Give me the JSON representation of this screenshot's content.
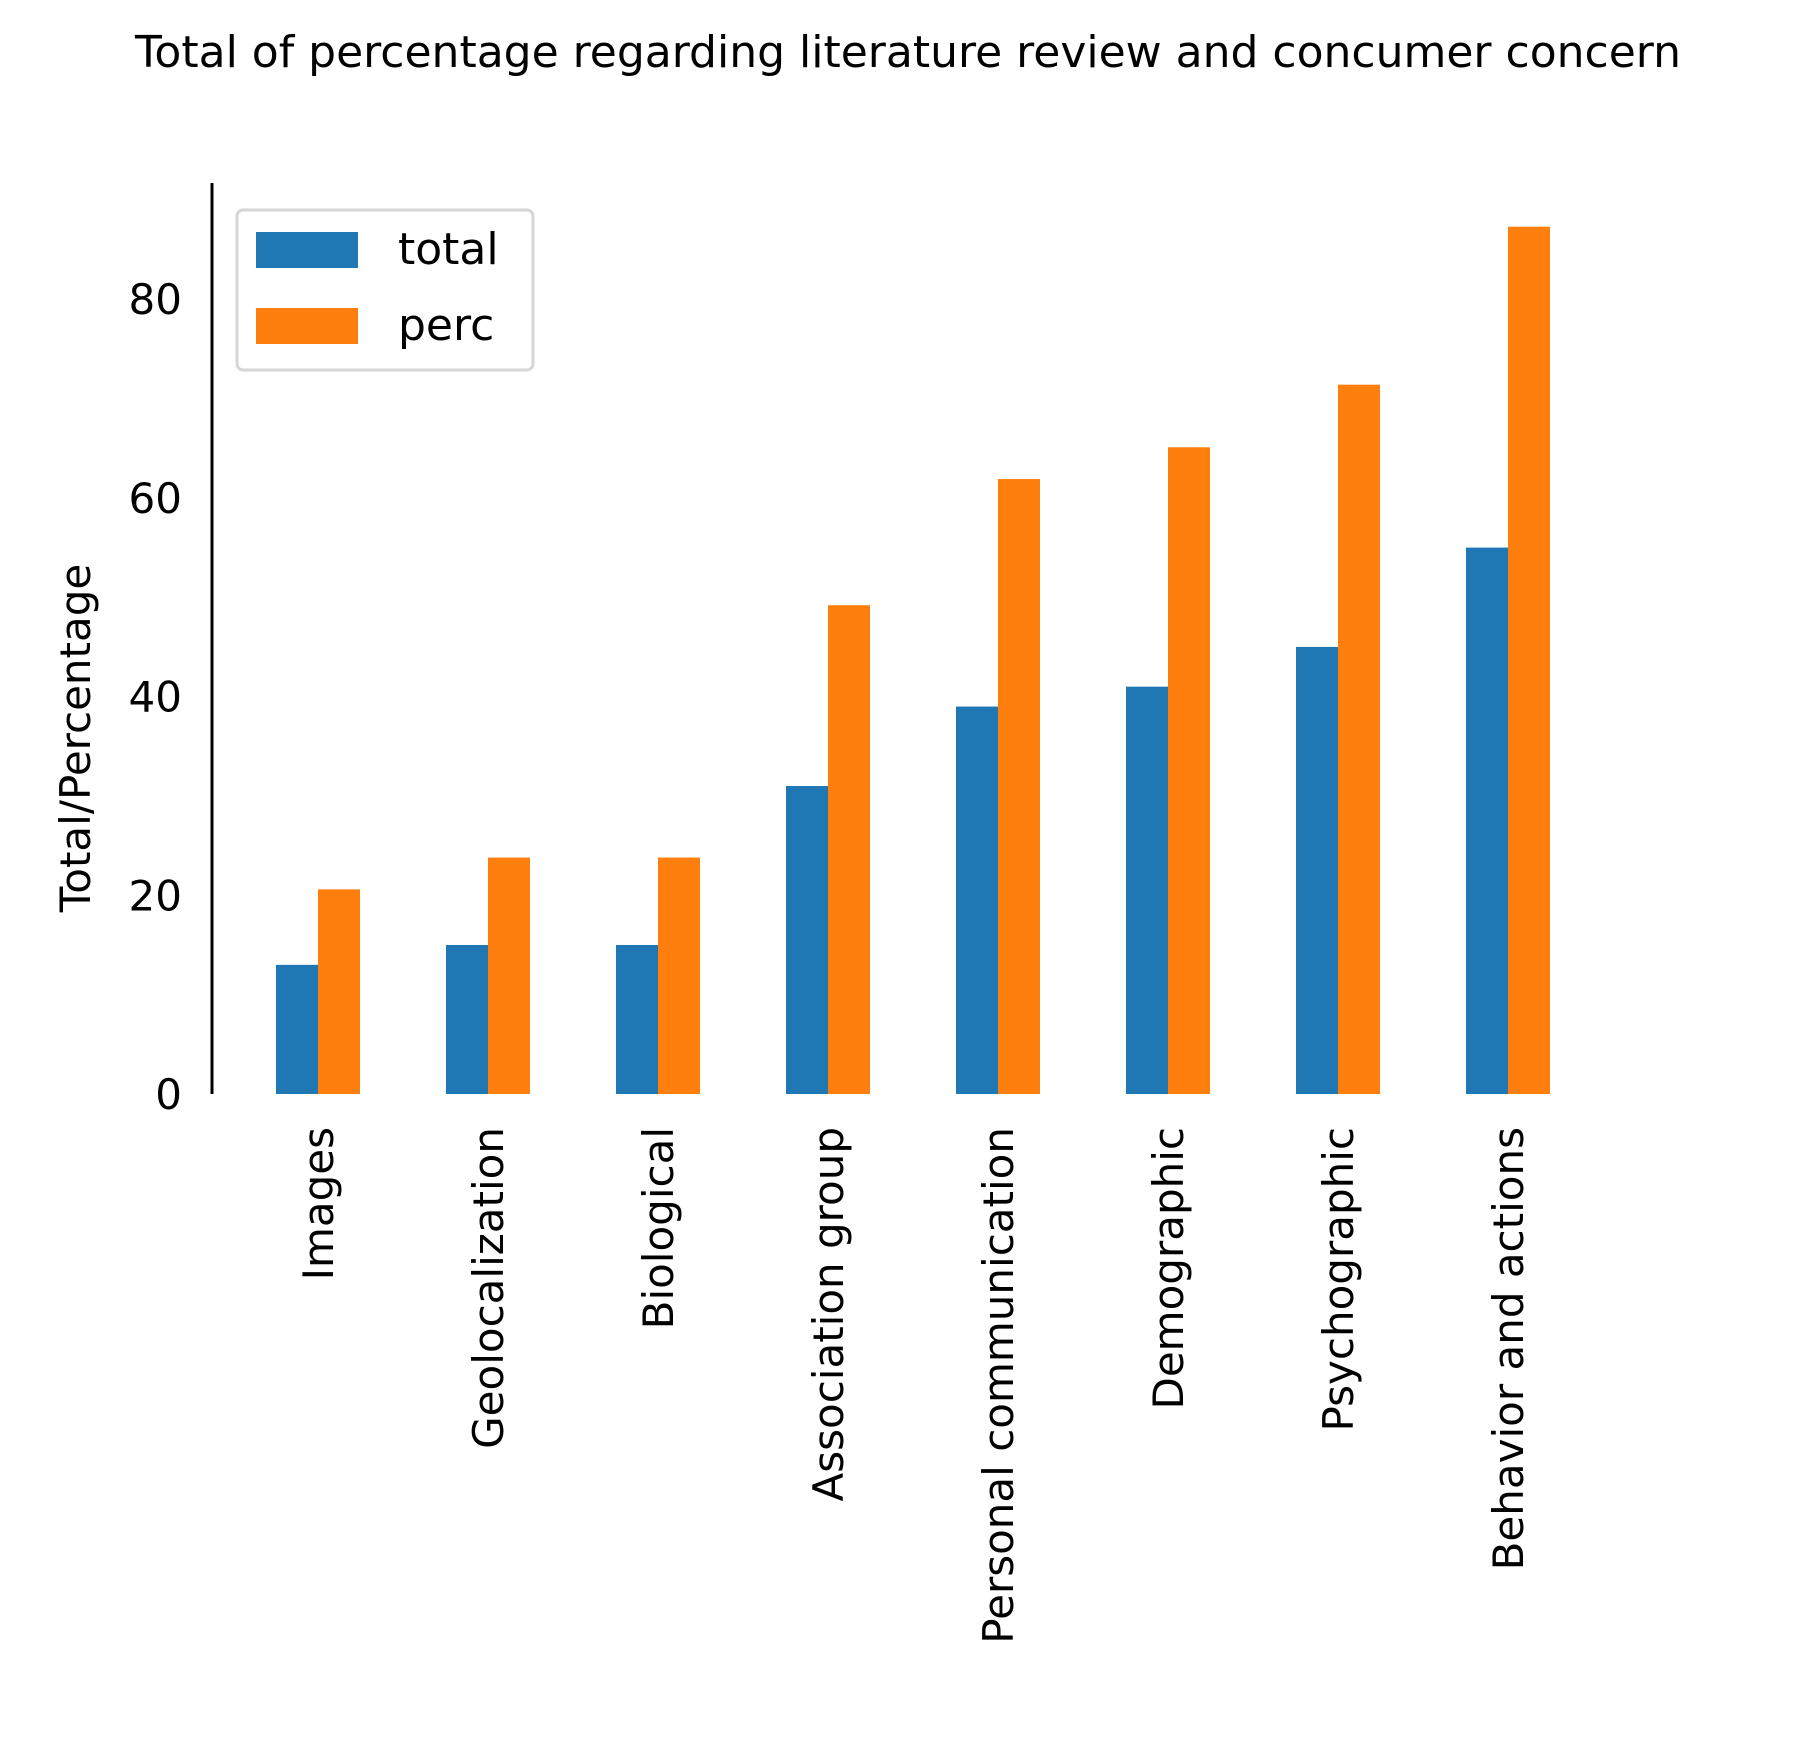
{
  "chart_data": {
    "type": "bar",
    "title": "Total of percentage regarding literature review and concumer concern",
    "xlabel": "",
    "ylabel": "Total/Percentage",
    "categories": [
      "Images",
      "Geolocalization",
      "Biological",
      "Association group",
      "Personal communication",
      "Demographic",
      "Psychographic",
      "Behavior and actions"
    ],
    "series": [
      {
        "name": "total",
        "color": "#1f77b4",
        "values": [
          13,
          15,
          15,
          31,
          39,
          41,
          45,
          55
        ]
      },
      {
        "name": "perc",
        "color": "#ff7f0e",
        "values": [
          20.6,
          23.8,
          23.8,
          49.2,
          61.9,
          65.1,
          71.4,
          87.3
        ]
      }
    ],
    "yticks": [
      0,
      20,
      40,
      60,
      80
    ],
    "ylim": [
      0,
      91.7
    ],
    "grid": false,
    "legend_position": "top-left"
  }
}
